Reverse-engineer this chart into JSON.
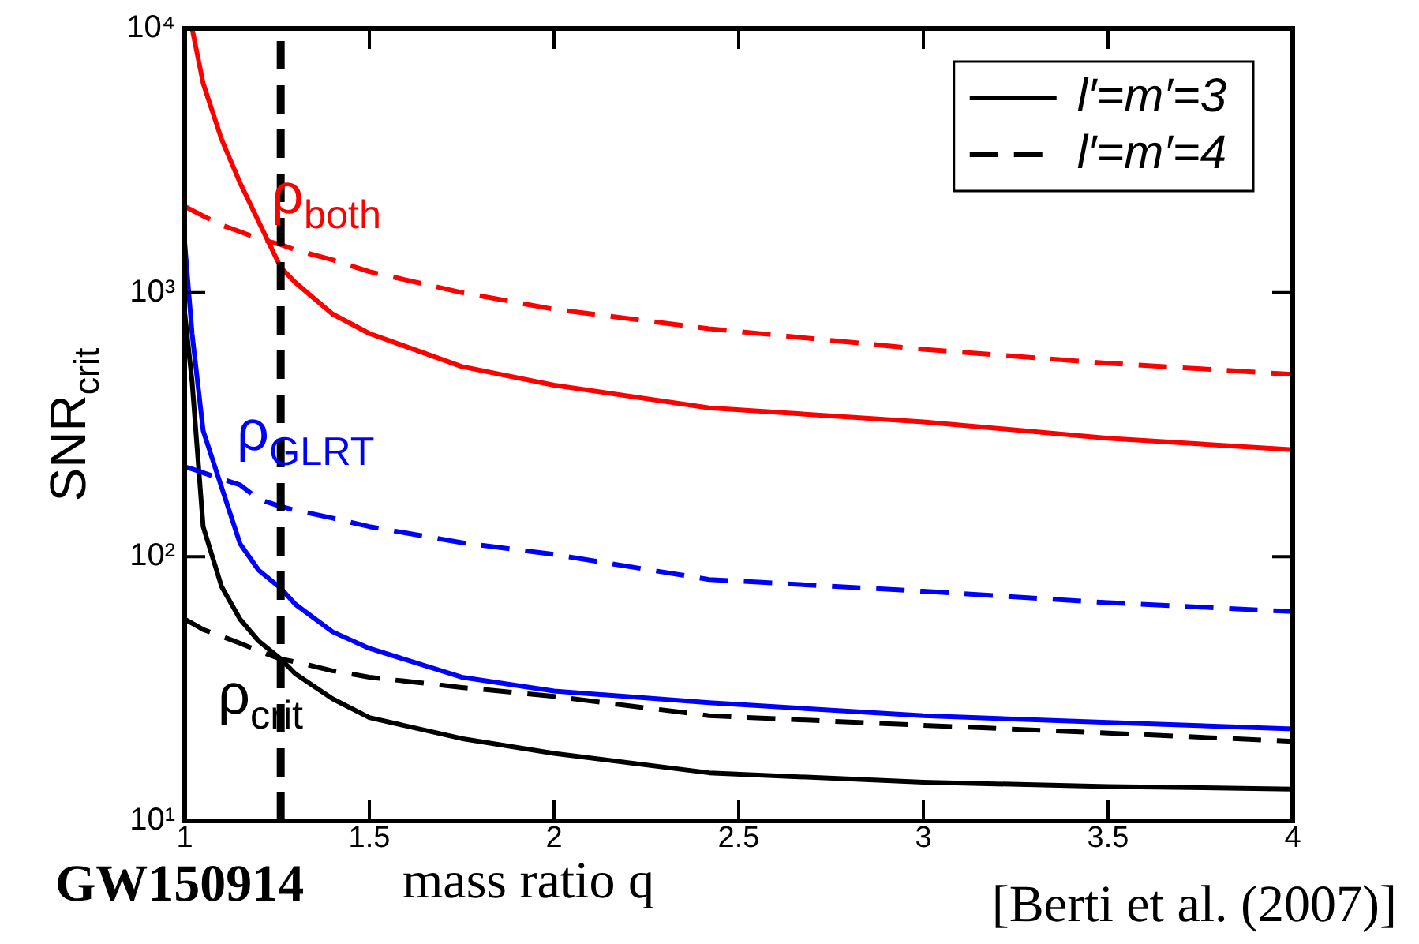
{
  "chart_data": {
    "type": "line",
    "xlabel": "mass ratio q",
    "ylabel": "SNR$_{crit}$",
    "x": [
      1,
      1.02,
      1.05,
      1.1,
      1.15,
      1.2,
      1.26,
      1.3,
      1.4,
      1.5,
      1.75,
      2,
      2.42,
      3,
      3.5,
      4
    ],
    "series": [
      {
        "color": "#ff0000",
        "line_style": "solid",
        "values": [
          null,
          10000,
          6200,
          3800,
          2600,
          1860,
          1245,
          1090,
          830,
          700,
          525,
          446,
          366,
          324,
          281,
          254
        ]
      },
      {
        "color": "#ff0000",
        "line_style": "dashed",
        "values": [
          2120,
          2050,
          1950,
          1800,
          1700,
          1600,
          1520,
          1450,
          1330,
          1200,
          1000,
          865,
          730,
          610,
          540,
          490
        ]
      },
      {
        "color": "#0000ff",
        "line_style": "solid",
        "values": [
          1550,
          700,
          300,
          183,
          112,
          89,
          76,
          66,
          52,
          45,
          35,
          31,
          28,
          25,
          23.6,
          22.3
        ]
      },
      {
        "color": "#0000ff",
        "line_style": "dashed",
        "values": [
          219,
          215,
          208,
          197,
          187,
          165,
          155,
          150,
          140,
          130,
          113,
          102,
          82,
          74,
          67,
          62
        ]
      },
      {
        "name": "l′=m′=3",
        "color": "#000000",
        "line_style": "solid",
        "values": [
          840,
          460,
          130,
          77,
          58,
          48,
          41,
          36,
          29,
          24.6,
          20.5,
          18,
          15.2,
          14,
          13.5,
          13.2
        ]
      },
      {
        "name": "l′=m′=4",
        "color": "#000000",
        "line_style": "dashed",
        "values": [
          58,
          56,
          53,
          50,
          47,
          44,
          41,
          40,
          37,
          35,
          32,
          29.6,
          25,
          23,
          21.5,
          20
        ]
      }
    ],
    "xlim": [
      1,
      4
    ],
    "xticks": [
      1,
      1.5,
      2,
      2.5,
      3,
      3.5,
      4
    ],
    "ylim": [
      10,
      10000
    ],
    "yticks": [
      {
        "value": 10,
        "label": "10¹"
      },
      {
        "value": 100,
        "label": "10²"
      },
      {
        "value": 1000,
        "label": "10³"
      },
      {
        "value": 10000,
        "label": "10⁴"
      }
    ],
    "log": "y",
    "grid": false,
    "legend": "top right",
    "marker": "none",
    "ref_lines": [
      {
        "axis": "x",
        "value": 1.26,
        "label": "GW150914",
        "color": "#000000",
        "line_style": "dashed"
      }
    ],
    "annotations": [
      "ρ$_{both}$",
      "ρ$_{GLRT}$",
      "ρ$_{crit}$",
      "[Berti et al. (2007)]"
    ]
  }
}
